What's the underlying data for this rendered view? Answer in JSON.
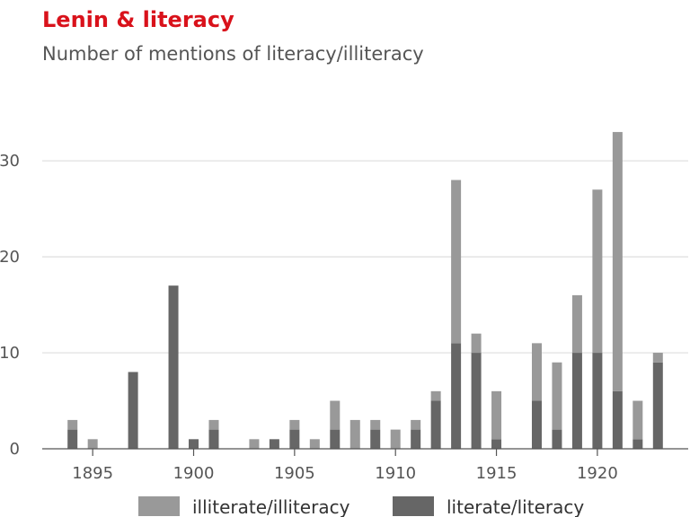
{
  "chart_data": {
    "type": "bar",
    "stacked": true,
    "title": "Lenin & literacy",
    "subtitle": "Number of mentions of literacy/illiteracy",
    "x": [
      1894,
      1895,
      1896,
      1897,
      1898,
      1899,
      1900,
      1901,
      1902,
      1903,
      1904,
      1905,
      1906,
      1907,
      1908,
      1909,
      1910,
      1911,
      1912,
      1913,
      1914,
      1915,
      1916,
      1917,
      1918,
      1919,
      1920,
      1921,
      1922,
      1923
    ],
    "series": [
      {
        "name": "literate/literacy",
        "color": "#666666",
        "values": [
          2,
          0,
          0,
          8,
          0,
          17,
          1,
          2,
          0,
          0,
          1,
          2,
          0,
          2,
          0,
          2,
          0,
          2,
          5,
          11,
          10,
          1,
          0,
          5,
          2,
          10,
          10,
          6,
          1,
          9
        ]
      },
      {
        "name": "illiterate/illiteracy",
        "color": "#999999",
        "values": [
          1,
          1,
          0,
          0,
          0,
          0,
          0,
          1,
          0,
          1,
          0,
          1,
          1,
          3,
          3,
          1,
          2,
          1,
          1,
          17,
          2,
          5,
          0,
          6,
          7,
          6,
          17,
          27,
          4,
          1
        ]
      }
    ],
    "xticks": [
      1895,
      1900,
      1905,
      1910,
      1915,
      1920
    ],
    "yticks": [
      0,
      10,
      20,
      30
    ],
    "ylim": [
      0,
      36
    ],
    "xlim": [
      1892.5,
      1924.5
    ],
    "grid": "horizontal",
    "legend": [
      "illiterate/illiteracy",
      "literate/literacy"
    ],
    "legend_position": "bottom"
  }
}
